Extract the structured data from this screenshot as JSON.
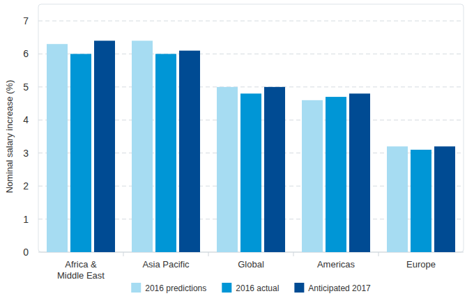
{
  "chart_data": {
    "type": "bar",
    "y_label": "Nominal salary increase (%)",
    "categories": [
      "Africa & Middle East",
      "Asia Pacific",
      "Global",
      "Americas",
      "Europe"
    ],
    "series": [
      {
        "name": "2016 predictions",
        "color": "#a6dcf2",
        "values": [
          6.3,
          6.4,
          5.0,
          4.6,
          3.2
        ]
      },
      {
        "name": "2016 actual",
        "color": "#0096d6",
        "values": [
          6.0,
          6.0,
          4.8,
          4.7,
          3.1
        ]
      },
      {
        "name": "Anticipated 2017",
        "color": "#004b93",
        "values": [
          6.4,
          6.1,
          5.0,
          4.8,
          3.2
        ]
      }
    ],
    "ylim": [
      0,
      7
    ],
    "yticks": [
      0,
      1,
      2,
      3,
      4,
      5,
      6,
      7
    ],
    "grid": true,
    "legend": "bottom"
  }
}
